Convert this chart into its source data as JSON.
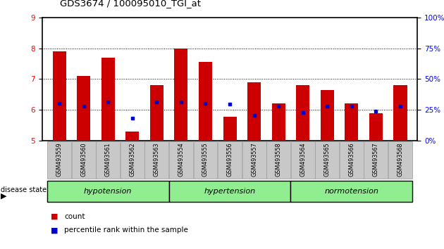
{
  "title": "GDS3674 / 100095010_TGI_at",
  "samples": [
    "GSM493559",
    "GSM493560",
    "GSM493561",
    "GSM493562",
    "GSM493563",
    "GSM493554",
    "GSM493555",
    "GSM493556",
    "GSM493557",
    "GSM493558",
    "GSM493564",
    "GSM493565",
    "GSM493566",
    "GSM493567",
    "GSM493568"
  ],
  "count_values": [
    7.9,
    7.1,
    7.7,
    5.3,
    6.8,
    8.0,
    7.55,
    5.78,
    6.9,
    6.2,
    6.8,
    6.65,
    6.2,
    5.9,
    6.8
  ],
  "percentile_values": [
    6.22,
    6.12,
    6.25,
    5.73,
    6.25,
    6.25,
    6.22,
    6.18,
    5.82,
    6.12,
    5.92,
    6.12,
    6.12,
    5.95,
    6.12
  ],
  "group_boundaries": [
    [
      0,
      4,
      "hypotension"
    ],
    [
      5,
      9,
      "hypertension"
    ],
    [
      10,
      14,
      "normotension"
    ]
  ],
  "ylim_left": [
    5,
    9
  ],
  "ylim_right": [
    0,
    100
  ],
  "yticks_left": [
    5,
    6,
    7,
    8,
    9
  ],
  "yticks_right": [
    0,
    25,
    50,
    75,
    100
  ],
  "bar_color": "#CC0000",
  "dot_color": "#0000CC",
  "bar_width": 0.55,
  "group_color": "#90EE90",
  "background_color": "#ffffff",
  "tick_bg_color": "#C8C8C8",
  "disease_state_label": "disease state",
  "legend_count": "count",
  "legend_percentile": "percentile rank within the sample"
}
